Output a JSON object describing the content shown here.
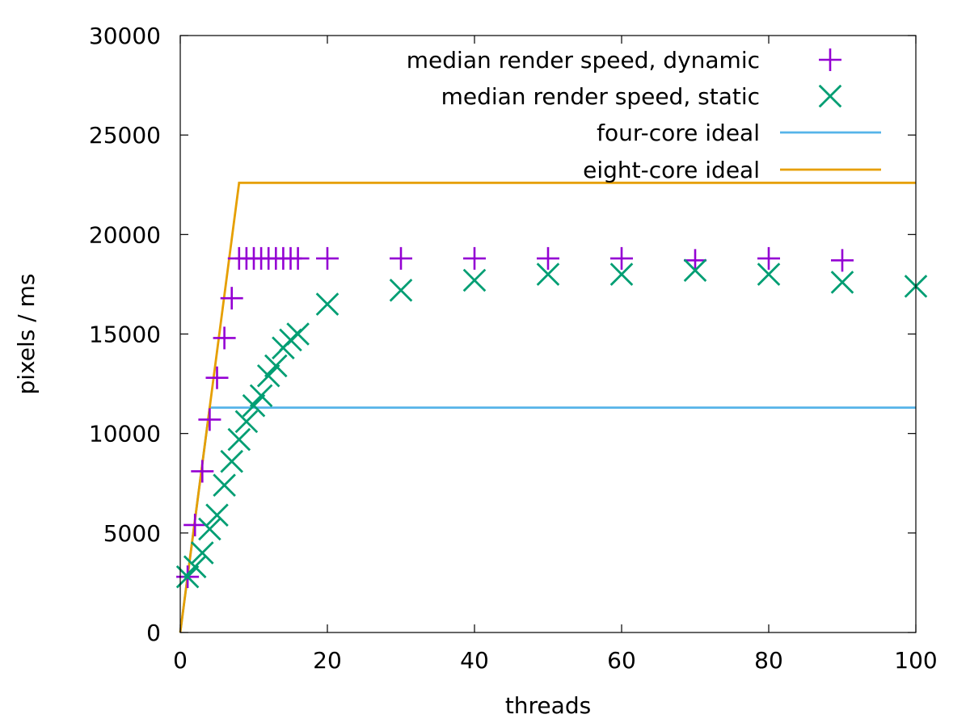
{
  "chart_data": {
    "type": "scatter",
    "xlabel": "threads",
    "ylabel": "pixels / ms",
    "xlim": [
      0,
      100
    ],
    "ylim": [
      0,
      30000
    ],
    "xticks": [
      0,
      20,
      40,
      60,
      80,
      100
    ],
    "yticks": [
      0,
      5000,
      10000,
      15000,
      20000,
      25000,
      30000
    ],
    "grid": false,
    "legend_position": "top-right",
    "series": [
      {
        "name": "median render speed, dynamic",
        "marker": "plus",
        "color": "#9400d3",
        "points": [
          [
            1,
            2800
          ],
          [
            2,
            5400
          ],
          [
            3,
            8100
          ],
          [
            4,
            10700
          ],
          [
            5,
            12800
          ],
          [
            6,
            14800
          ],
          [
            7,
            16800
          ],
          [
            8,
            18800
          ],
          [
            9,
            18800
          ],
          [
            10,
            18800
          ],
          [
            11,
            18800
          ],
          [
            12,
            18800
          ],
          [
            13,
            18800
          ],
          [
            14,
            18800
          ],
          [
            15,
            18800
          ],
          [
            16,
            18800
          ],
          [
            20,
            18800
          ],
          [
            30,
            18800
          ],
          [
            40,
            18800
          ],
          [
            50,
            18800
          ],
          [
            60,
            18800
          ],
          [
            70,
            18700
          ],
          [
            80,
            18800
          ],
          [
            90,
            18700
          ]
        ]
      },
      {
        "name": "median render speed, static",
        "marker": "x",
        "color": "#009e73",
        "points": [
          [
            1,
            2800
          ],
          [
            2,
            3300
          ],
          [
            3,
            4000
          ],
          [
            4,
            5200
          ],
          [
            5,
            5900
          ],
          [
            6,
            7400
          ],
          [
            7,
            8600
          ],
          [
            8,
            9700
          ],
          [
            9,
            10600
          ],
          [
            10,
            11400
          ],
          [
            11,
            11900
          ],
          [
            12,
            12900
          ],
          [
            13,
            13400
          ],
          [
            14,
            14300
          ],
          [
            15,
            14700
          ],
          [
            16,
            15000
          ],
          [
            20,
            16500
          ],
          [
            30,
            17200
          ],
          [
            40,
            17700
          ],
          [
            50,
            18000
          ],
          [
            60,
            18000
          ],
          [
            70,
            18200
          ],
          [
            80,
            18000
          ],
          [
            90,
            17600
          ],
          [
            100,
            17400
          ]
        ]
      },
      {
        "name": "four-core ideal",
        "marker": "line",
        "color": "#56b4e9",
        "points": [
          [
            0,
            0
          ],
          [
            4,
            11300
          ],
          [
            100,
            11300
          ]
        ]
      },
      {
        "name": "eight-core ideal",
        "marker": "line",
        "color": "#e69f00",
        "points": [
          [
            0,
            0
          ],
          [
            8,
            22600
          ],
          [
            100,
            22600
          ]
        ]
      }
    ]
  }
}
